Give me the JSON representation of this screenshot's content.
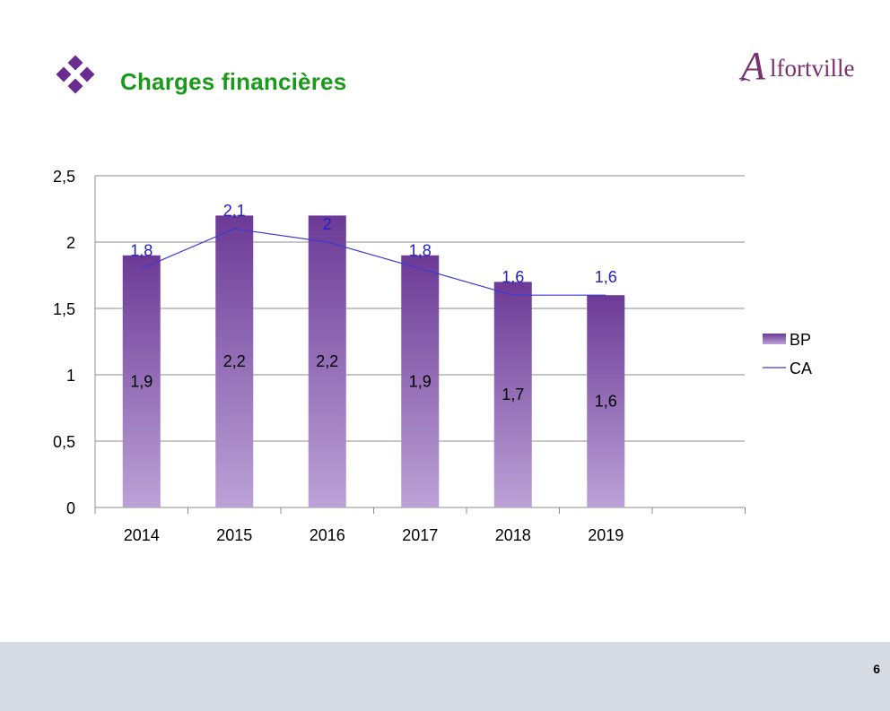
{
  "slide": {
    "title": "Charges financières",
    "page_number": "6",
    "logo_text": "Alfortville",
    "logo_initial": "A",
    "logo_rest": "lfortville"
  },
  "colors": {
    "title": "#1a9a1a",
    "bullet": "#6b2c91",
    "bar_top": "#6c3a96",
    "bar_bottom": "#bba2d6",
    "line": "#3a3ad0",
    "line_label": "#2020c0",
    "logo": "#7a2f6e",
    "footer": "#d6dae2"
  },
  "chart_data": {
    "type": "bar",
    "categories": [
      "2014",
      "2015",
      "2016",
      "2017",
      "2018",
      "2019"
    ],
    "ylim": [
      0,
      2.5
    ],
    "yticks": [
      "0",
      "0,5",
      "1",
      "1,5",
      "2",
      "2,5"
    ],
    "grid": true,
    "legend_position": "right",
    "series": [
      {
        "name": "BP",
        "type": "bar",
        "values": [
          1.9,
          2.2,
          2.2,
          1.9,
          1.7,
          1.6
        ],
        "labels": [
          "1,9",
          "2,2",
          "2,2",
          "1,9",
          "1,7",
          "1,6"
        ]
      },
      {
        "name": "CA",
        "type": "line",
        "values": [
          1.8,
          2.1,
          2.0,
          1.8,
          1.6,
          1.6
        ],
        "labels": [
          "1,8",
          "2,1",
          "2",
          "1,8",
          "1,6",
          "1,6"
        ]
      }
    ]
  }
}
